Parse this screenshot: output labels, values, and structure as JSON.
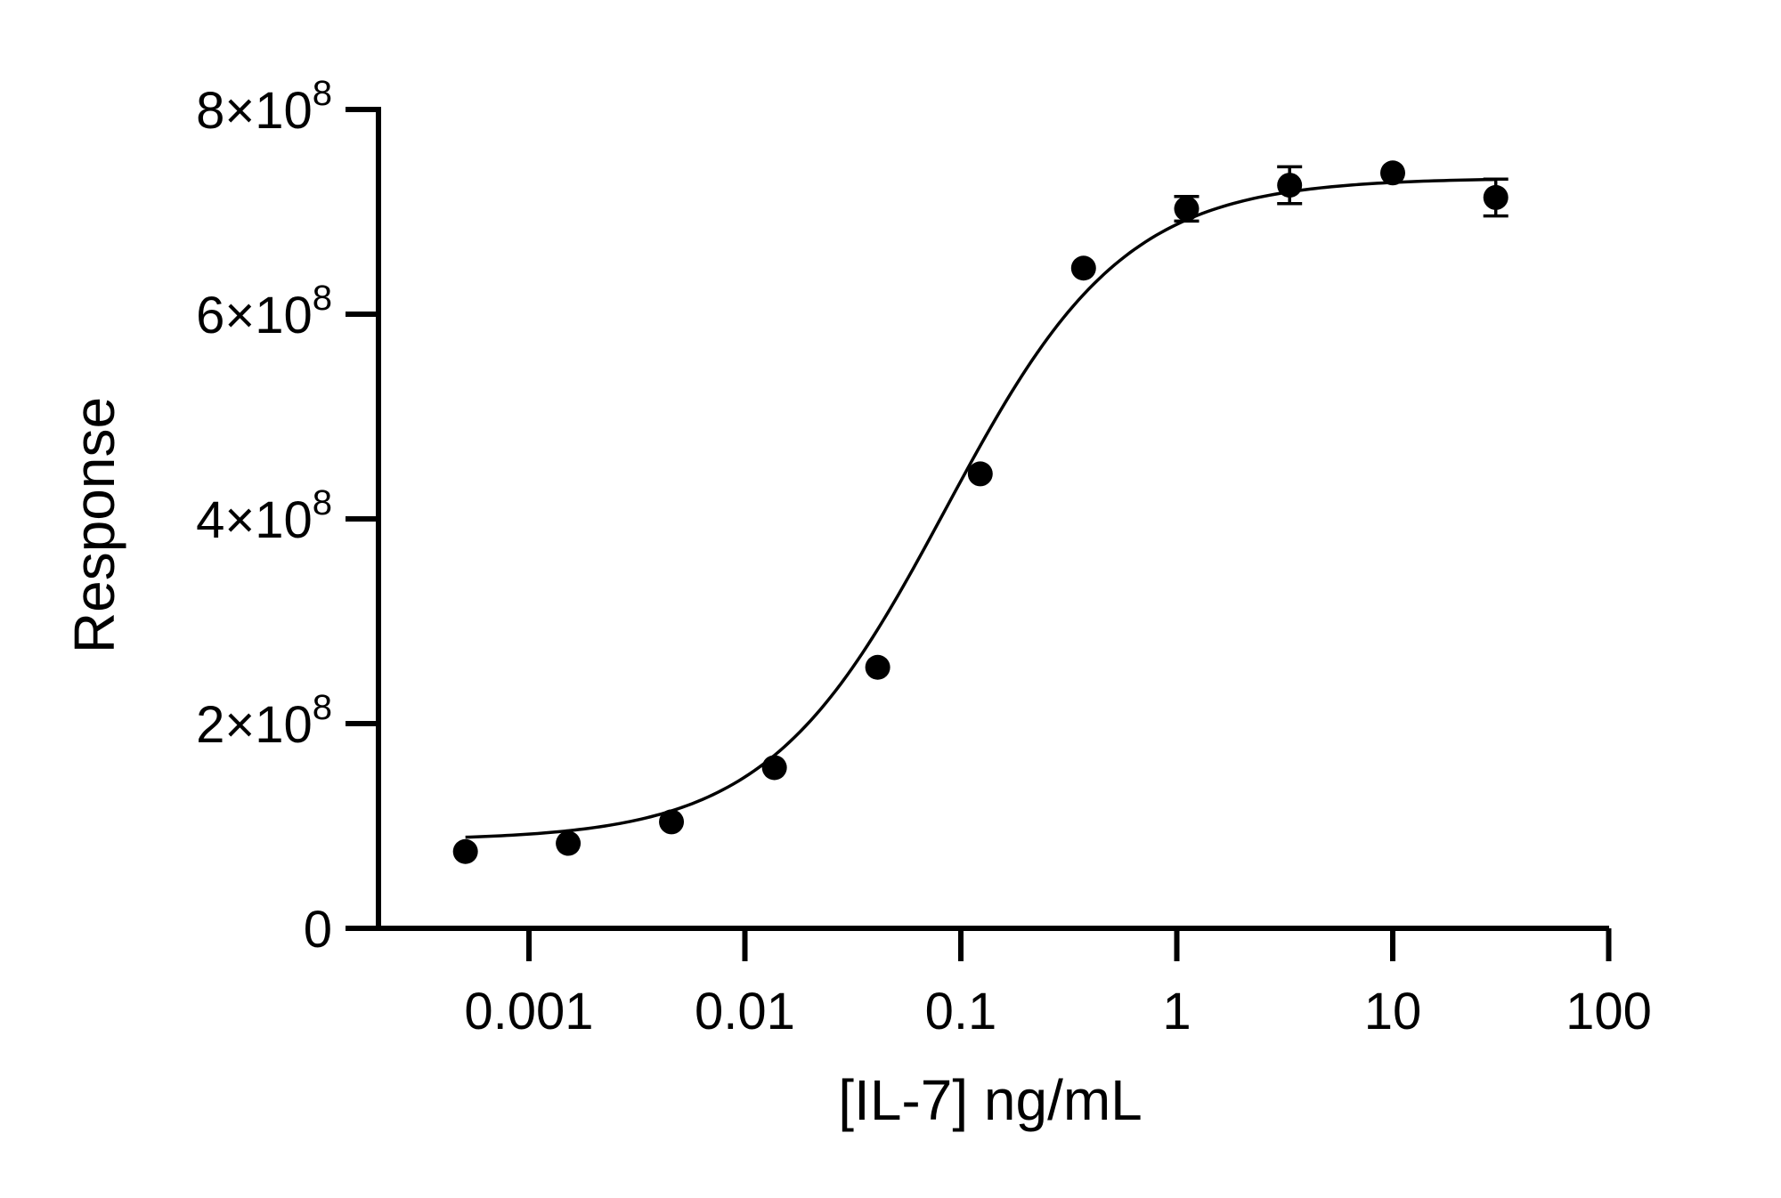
{
  "chart_data": {
    "type": "scatter",
    "title": "",
    "xlabel": "[IL-7] ng/mL",
    "ylabel": "Response",
    "x_scale": "log",
    "xlim": [
      0.0002,
      100
    ],
    "ylim": [
      0,
      800000000
    ],
    "x_ticks": [
      {
        "value": 0.001,
        "label": "0.001"
      },
      {
        "value": 0.01,
        "label": "0.01"
      },
      {
        "value": 0.1,
        "label": "0.1"
      },
      {
        "value": 1,
        "label": "1"
      },
      {
        "value": 10,
        "label": "10"
      },
      {
        "value": 100,
        "label": "100"
      }
    ],
    "y_ticks": [
      {
        "value": 0,
        "mantissa": "0",
        "exp": ""
      },
      {
        "value": 200000000,
        "mantissa": "2×10",
        "exp": "8"
      },
      {
        "value": 400000000,
        "mantissa": "4×10",
        "exp": "8"
      },
      {
        "value": 600000000,
        "mantissa": "6×10",
        "exp": "8"
      },
      {
        "value": 800000000,
        "mantissa": "8×10",
        "exp": "8"
      }
    ],
    "grid": false,
    "legend": "none",
    "marker_color": "#000000",
    "series": [
      {
        "points": [
          {
            "x": 0.000508,
            "y": 75000000,
            "err": 0
          },
          {
            "x": 0.00152,
            "y": 83000000,
            "err": 0
          },
          {
            "x": 0.00457,
            "y": 104000000,
            "err": 0
          },
          {
            "x": 0.0137,
            "y": 157000000,
            "err": 0
          },
          {
            "x": 0.0412,
            "y": 255000000,
            "err": 0
          },
          {
            "x": 0.123,
            "y": 444000000,
            "err": 0
          },
          {
            "x": 0.37,
            "y": 645000000,
            "err": 0
          },
          {
            "x": 1.11,
            "y": 703000000,
            "err": 12000000
          },
          {
            "x": 3.33,
            "y": 726000000,
            "err": 18000000
          },
          {
            "x": 10.0,
            "y": 738000000,
            "err": 0
          },
          {
            "x": 30.0,
            "y": 714000000,
            "err": 18000000
          }
        ],
        "fit": {
          "model": "4PL",
          "bottom": 86000000,
          "top": 733000000,
          "ec50": 0.085,
          "hill": 1.05,
          "x_range": [
            0.000508,
            30.0
          ]
        }
      }
    ]
  }
}
